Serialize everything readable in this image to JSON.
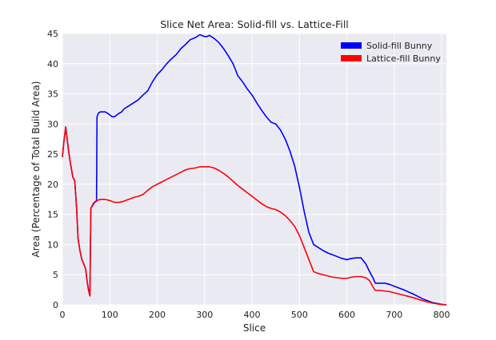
{
  "chart_data": {
    "type": "line",
    "title": "Slice Net Area:  Solid-fill vs. Lattice-Fill",
    "xlabel": "Slice",
    "ylabel": "Area (Percentage of Total Build Area)",
    "xlim": [
      0,
      810
    ],
    "ylim": [
      0,
      45
    ],
    "xticks": [
      0,
      100,
      200,
      300,
      400,
      500,
      600,
      700,
      800
    ],
    "yticks": [
      0,
      5,
      10,
      15,
      20,
      25,
      30,
      35,
      40,
      45
    ],
    "grid": true,
    "legend_position": "top-right",
    "series": [
      {
        "name": "Solid-fill Bunny",
        "color": "#0000ff",
        "points": [
          [
            0,
            24.5
          ],
          [
            3,
            27
          ],
          [
            7,
            29.5
          ],
          [
            10,
            27.5
          ],
          [
            14,
            25
          ],
          [
            18,
            23
          ],
          [
            22,
            21.2
          ],
          [
            26,
            20.6
          ],
          [
            30,
            16
          ],
          [
            33,
            11
          ],
          [
            37,
            9
          ],
          [
            41,
            7.5
          ],
          [
            45,
            6.8
          ],
          [
            49,
            6
          ],
          [
            52,
            4
          ],
          [
            55,
            2.5
          ],
          [
            58,
            1.5
          ],
          [
            60,
            16
          ],
          [
            64,
            16.5
          ],
          [
            68,
            17
          ],
          [
            72,
            17.2
          ],
          [
            73,
            31.2
          ],
          [
            76,
            31.8
          ],
          [
            80,
            32
          ],
          [
            85,
            32
          ],
          [
            90,
            32
          ],
          [
            95,
            31.8
          ],
          [
            100,
            31.5
          ],
          [
            105,
            31.2
          ],
          [
            110,
            31.2
          ],
          [
            115,
            31.5
          ],
          [
            120,
            31.8
          ],
          [
            125,
            32
          ],
          [
            130,
            32.5
          ],
          [
            140,
            33
          ],
          [
            150,
            33.5
          ],
          [
            160,
            34
          ],
          [
            170,
            34.8
          ],
          [
            180,
            35.5
          ],
          [
            190,
            37
          ],
          [
            200,
            38.2
          ],
          [
            210,
            39
          ],
          [
            220,
            40
          ],
          [
            230,
            40.8
          ],
          [
            240,
            41.5
          ],
          [
            250,
            42.5
          ],
          [
            260,
            43.2
          ],
          [
            270,
            44
          ],
          [
            280,
            44.3
          ],
          [
            290,
            44.8
          ],
          [
            300,
            44.5
          ],
          [
            305,
            44.5
          ],
          [
            310,
            44.7
          ],
          [
            320,
            44.2
          ],
          [
            330,
            43.5
          ],
          [
            340,
            42.5
          ],
          [
            350,
            41.3
          ],
          [
            360,
            40
          ],
          [
            370,
            38
          ],
          [
            380,
            37
          ],
          [
            390,
            35.8
          ],
          [
            400,
            34.8
          ],
          [
            410,
            33.5
          ],
          [
            420,
            32.3
          ],
          [
            430,
            31.2
          ],
          [
            440,
            30.3
          ],
          [
            450,
            30
          ],
          [
            460,
            29
          ],
          [
            470,
            27.5
          ],
          [
            480,
            25.5
          ],
          [
            490,
            23
          ],
          [
            500,
            19.5
          ],
          [
            510,
            15.5
          ],
          [
            520,
            12
          ],
          [
            530,
            10
          ],
          [
            540,
            9.5
          ],
          [
            550,
            9
          ],
          [
            560,
            8.6
          ],
          [
            570,
            8.3
          ],
          [
            580,
            8
          ],
          [
            590,
            7.7
          ],
          [
            600,
            7.5
          ],
          [
            610,
            7.7
          ],
          [
            620,
            7.8
          ],
          [
            630,
            7.8
          ],
          [
            640,
            6.8
          ],
          [
            648,
            5.5
          ],
          [
            655,
            4.5
          ],
          [
            660,
            3.6
          ],
          [
            670,
            3.6
          ],
          [
            680,
            3.6
          ],
          [
            690,
            3.4
          ],
          [
            700,
            3.1
          ],
          [
            720,
            2.5
          ],
          [
            740,
            1.8
          ],
          [
            760,
            1
          ],
          [
            780,
            0.4
          ],
          [
            800,
            0.1
          ],
          [
            810,
            0
          ]
        ]
      },
      {
        "name": "Lattice-fill Bunny",
        "color": "#ff0000",
        "points": [
          [
            0,
            24.5
          ],
          [
            3,
            27
          ],
          [
            7,
            29.5
          ],
          [
            10,
            27.5
          ],
          [
            14,
            25
          ],
          [
            18,
            23
          ],
          [
            22,
            21.2
          ],
          [
            26,
            20.6
          ],
          [
            30,
            16
          ],
          [
            33,
            11
          ],
          [
            37,
            9
          ],
          [
            41,
            7.5
          ],
          [
            45,
            6.8
          ],
          [
            49,
            6
          ],
          [
            52,
            4
          ],
          [
            55,
            2.5
          ],
          [
            58,
            1.5
          ],
          [
            60,
            16
          ],
          [
            65,
            16.8
          ],
          [
            70,
            17.2
          ],
          [
            80,
            17.5
          ],
          [
            90,
            17.5
          ],
          [
            100,
            17.3
          ],
          [
            110,
            17
          ],
          [
            120,
            17
          ],
          [
            130,
            17.2
          ],
          [
            140,
            17.5
          ],
          [
            150,
            17.8
          ],
          [
            160,
            18
          ],
          [
            170,
            18.3
          ],
          [
            180,
            19
          ],
          [
            190,
            19.6
          ],
          [
            200,
            20
          ],
          [
            210,
            20.4
          ],
          [
            220,
            20.8
          ],
          [
            230,
            21.2
          ],
          [
            240,
            21.6
          ],
          [
            250,
            22
          ],
          [
            260,
            22.4
          ],
          [
            270,
            22.6
          ],
          [
            280,
            22.7
          ],
          [
            290,
            22.9
          ],
          [
            300,
            22.9
          ],
          [
            310,
            22.9
          ],
          [
            320,
            22.7
          ],
          [
            330,
            22.3
          ],
          [
            340,
            21.8
          ],
          [
            350,
            21.2
          ],
          [
            360,
            20.5
          ],
          [
            370,
            19.8
          ],
          [
            380,
            19.2
          ],
          [
            390,
            18.6
          ],
          [
            400,
            18
          ],
          [
            410,
            17.4
          ],
          [
            420,
            16.8
          ],
          [
            430,
            16.3
          ],
          [
            440,
            16
          ],
          [
            450,
            15.8
          ],
          [
            460,
            15.4
          ],
          [
            470,
            14.8
          ],
          [
            480,
            14
          ],
          [
            490,
            13
          ],
          [
            500,
            11.5
          ],
          [
            510,
            9.5
          ],
          [
            520,
            7.5
          ],
          [
            530,
            5.5
          ],
          [
            540,
            5.2
          ],
          [
            550,
            5
          ],
          [
            560,
            4.8
          ],
          [
            570,
            4.6
          ],
          [
            580,
            4.5
          ],
          [
            590,
            4.4
          ],
          [
            600,
            4.4
          ],
          [
            610,
            4.6
          ],
          [
            620,
            4.7
          ],
          [
            630,
            4.7
          ],
          [
            640,
            4.5
          ],
          [
            648,
            4
          ],
          [
            655,
            3
          ],
          [
            660,
            2.4
          ],
          [
            670,
            2.4
          ],
          [
            680,
            2.3
          ],
          [
            690,
            2.2
          ],
          [
            700,
            2
          ],
          [
            720,
            1.6
          ],
          [
            740,
            1.2
          ],
          [
            760,
            0.7
          ],
          [
            780,
            0.3
          ],
          [
            800,
            0.05
          ],
          [
            810,
            0
          ]
        ]
      }
    ]
  }
}
